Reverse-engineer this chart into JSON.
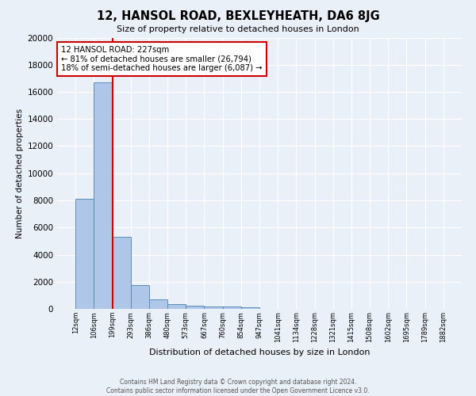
{
  "title": "12, HANSOL ROAD, BEXLEYHEATH, DA6 8JG",
  "subtitle": "Size of property relative to detached houses in London",
  "xlabel": "Distribution of detached houses by size in London",
  "ylabel": "Number of detached properties",
  "bin_labels": [
    "12sqm",
    "106sqm",
    "199sqm",
    "293sqm",
    "386sqm",
    "480sqm",
    "573sqm",
    "667sqm",
    "760sqm",
    "854sqm",
    "947sqm",
    "1041sqm",
    "1134sqm",
    "1228sqm",
    "1321sqm",
    "1415sqm",
    "1508sqm",
    "1602sqm",
    "1695sqm",
    "1789sqm",
    "1882sqm"
  ],
  "bar_heights": [
    8100,
    16700,
    5300,
    1750,
    700,
    330,
    250,
    200,
    175,
    130,
    0,
    0,
    0,
    0,
    0,
    0,
    0,
    0,
    0,
    0
  ],
  "bar_color": "#aec6e8",
  "bar_edge_color": "#5b8db8",
  "vline_x": 2,
  "vline_color": "#cc0000",
  "annotation_text": "12 HANSOL ROAD: 227sqm\n← 81% of detached houses are smaller (26,794)\n18% of semi-detached houses are larger (6,087) →",
  "annotation_box_color": "#ffffff",
  "annotation_border_color": "#cc0000",
  "ylim": [
    0,
    20000
  ],
  "yticks": [
    0,
    2000,
    4000,
    6000,
    8000,
    10000,
    12000,
    14000,
    16000,
    18000,
    20000
  ],
  "footer": "Contains HM Land Registry data © Crown copyright and database right 2024.\nContains public sector information licensed under the Open Government Licence v3.0.",
  "bg_color": "#eaf0f8",
  "grid_color": "#ffffff"
}
